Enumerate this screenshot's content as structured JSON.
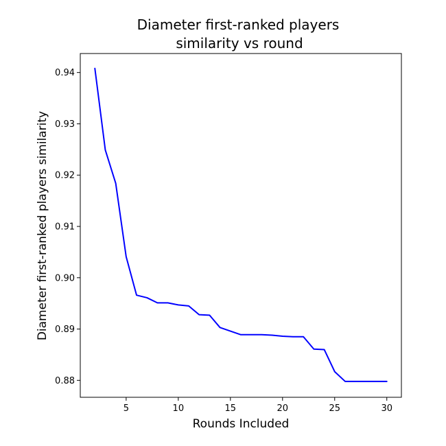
{
  "chart_data": {
    "type": "line",
    "title_lines": [
      "Diameter first-ranked players",
      "similarity vs round"
    ],
    "xlabel": "Rounds Included",
    "ylabel": "Diameter first-ranked players similarity",
    "xlim": [
      0.6,
      31.4
    ],
    "ylim": [
      0.8767,
      0.9437
    ],
    "xticks": [
      5,
      10,
      15,
      20,
      25,
      30
    ],
    "yticks": [
      0.88,
      0.89,
      0.9,
      0.91,
      0.92,
      0.93,
      0.94
    ],
    "ytick_labels": [
      "0.88",
      "0.89",
      "0.90",
      "0.91",
      "0.92",
      "0.93",
      "0.94"
    ],
    "grid": false,
    "series": [
      {
        "color": "#0000ff",
        "x": [
          2,
          3,
          4,
          5,
          6,
          7,
          8,
          9,
          10,
          11,
          12,
          13,
          14,
          15,
          16,
          17,
          18,
          19,
          20,
          21,
          22,
          23,
          24,
          25,
          26,
          27,
          28,
          29,
          30
        ],
        "y": [
          0.9408,
          0.9249,
          0.9184,
          0.9041,
          0.8966,
          0.8961,
          0.8951,
          0.8951,
          0.8947,
          0.8945,
          0.8928,
          0.8927,
          0.8903,
          0.8896,
          0.8889,
          0.8889,
          0.8889,
          0.8888,
          0.8886,
          0.8885,
          0.8885,
          0.8861,
          0.886,
          0.8817,
          0.8798,
          0.8798,
          0.8798,
          0.8798,
          0.8798
        ]
      }
    ]
  }
}
